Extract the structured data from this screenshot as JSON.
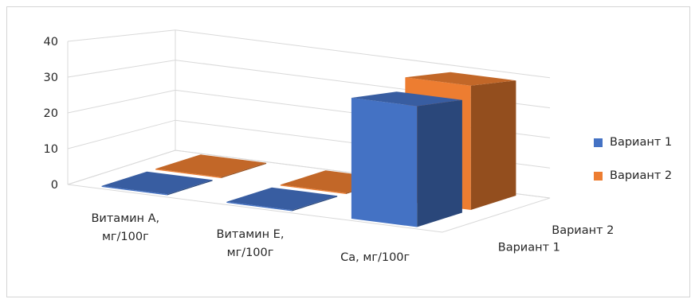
{
  "chart_data": {
    "type": "bar",
    "title": "",
    "categories": [
      "Витамин А, мг/100г",
      "Витамин Е, мг/100г",
      "Са, мг/100г"
    ],
    "category_lines": [
      [
        "Витамин А,",
        "мг/100г"
      ],
      [
        "Витамин Е,",
        "мг/100г"
      ],
      [
        "Са, мг/100г"
      ]
    ],
    "series": [
      {
        "name": "Вариант 1",
        "values": [
          0.3,
          0.3,
          34
        ],
        "color": "#4472c4"
      },
      {
        "name": "Вариант 2",
        "values": [
          0.3,
          0.3,
          38
        ],
        "color": "#ed7d31"
      }
    ],
    "depth_labels": [
      "Вариант 1",
      "Вариант 2"
    ],
    "yticks": [
      0,
      10,
      20,
      30,
      40
    ],
    "ylim": [
      0,
      40
    ],
    "grid": true,
    "legend_position": "right"
  }
}
